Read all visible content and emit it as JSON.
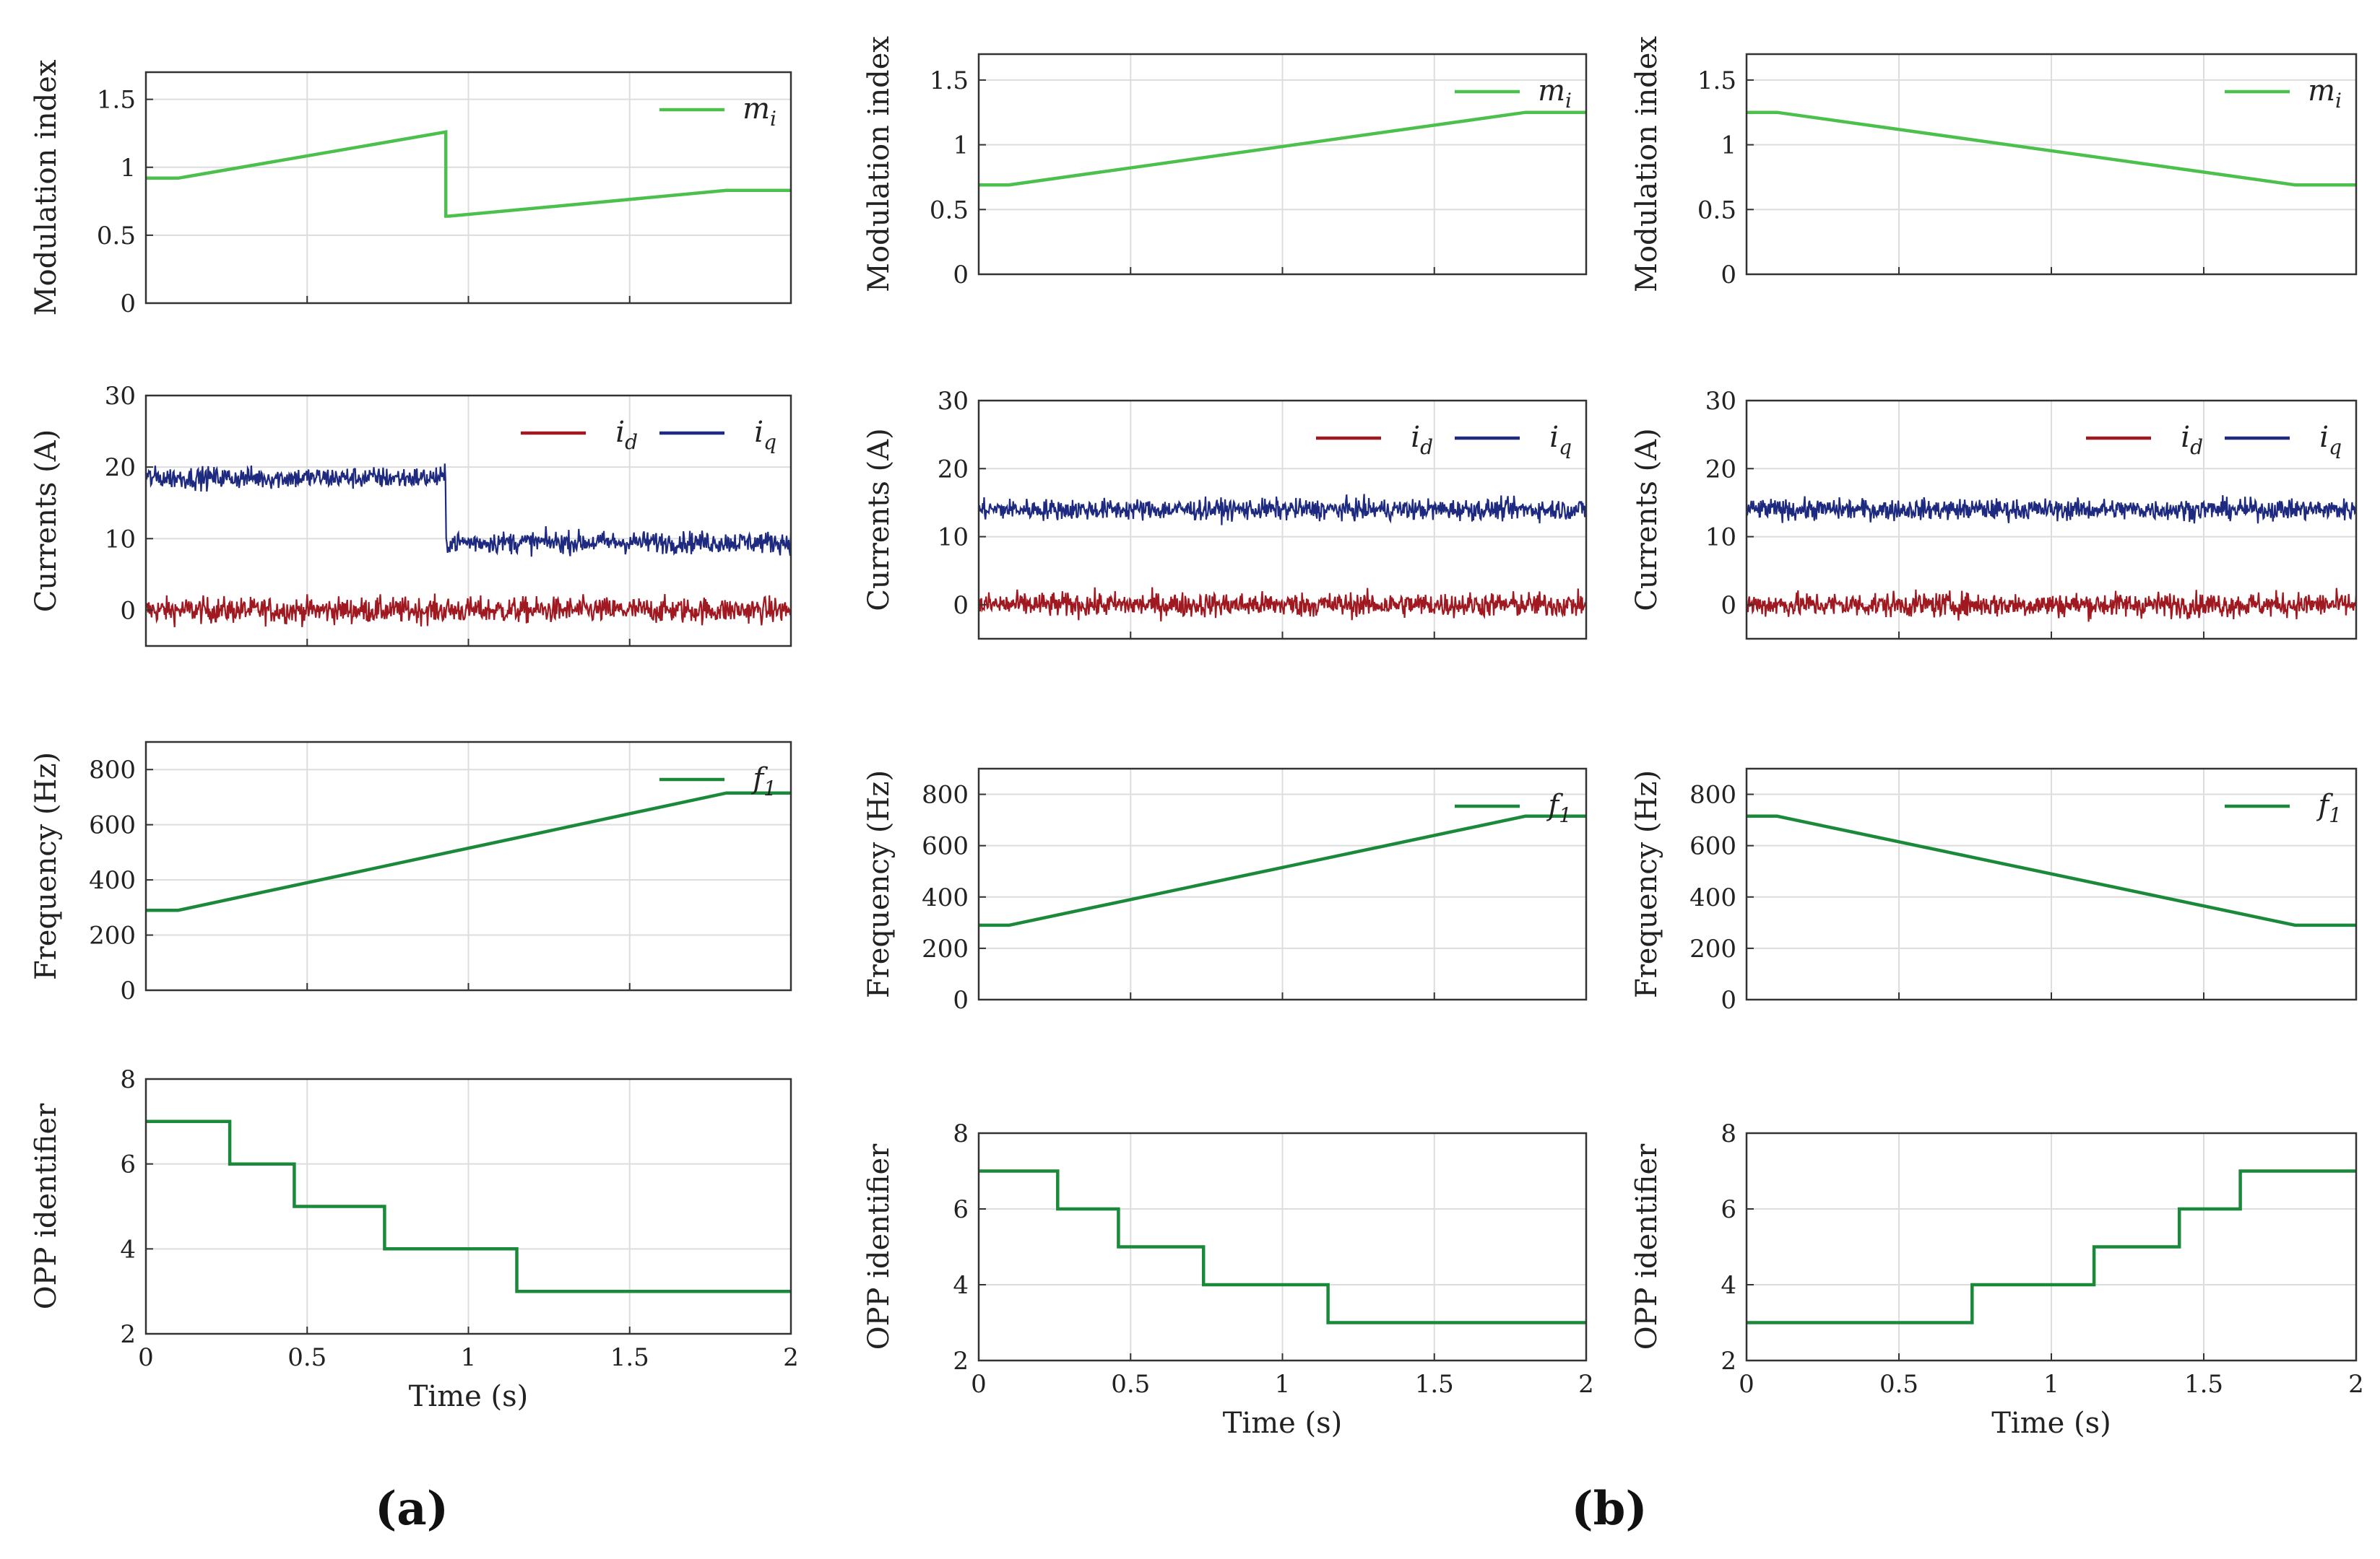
{
  "panel_labels": [
    "(a)",
    "(b)"
  ],
  "colors": {
    "mi": "#4cc04c",
    "id": "#a01820",
    "iq": "#1e2a80",
    "f1": "#1a8a3a",
    "opp": "#1a8a3a"
  },
  "chart_data": [
    {
      "id": "a-mi",
      "type": "line",
      "ylabel": "Modulation index",
      "xlabel": "",
      "xlim": [
        0,
        2
      ],
      "ylim": [
        0,
        1.7
      ],
      "yticks": [
        0,
        0.5,
        1,
        1.5
      ],
      "ytick_labels": [
        "0",
        "0.5",
        "1",
        "1.5"
      ],
      "xtick_labels": [],
      "series": [
        {
          "name": "m_i",
          "color": "mi",
          "x": [
            0,
            0.1,
            0.93,
            0.93,
            0.94,
            1.8,
            2
          ],
          "y": [
            0.92,
            0.92,
            1.26,
            0.64,
            0.64,
            0.83,
            0.83
          ]
        }
      ],
      "legend": [
        "m_i"
      ]
    },
    {
      "id": "a-cur",
      "type": "line",
      "ylabel": "Currents (A)",
      "xlabel": "",
      "xlim": [
        0,
        2
      ],
      "ylim": [
        -5,
        30
      ],
      "yticks": [
        0,
        10,
        20,
        30
      ],
      "ytick_labels": [
        "0",
        "10",
        "20",
        "30"
      ],
      "xtick_labels": [],
      "series": [
        {
          "name": "i_d",
          "color": "id",
          "noise": true,
          "x": [
            0,
            2
          ],
          "y": [
            0,
            0
          ]
        },
        {
          "name": "i_q",
          "color": "iq",
          "noise": true,
          "x": [
            0,
            0.93,
            0.93,
            2
          ],
          "y": [
            18.5,
            18.5,
            9.5,
            9.5
          ]
        }
      ],
      "legend": [
        "i_d",
        "i_q"
      ]
    },
    {
      "id": "a-freq",
      "type": "line",
      "ylabel": "Frequency (Hz)",
      "xlabel": "",
      "xlim": [
        0,
        2
      ],
      "ylim": [
        0,
        900
      ],
      "yticks": [
        0,
        200,
        400,
        600,
        800
      ],
      "ytick_labels": [
        "0",
        "200",
        "400",
        "600",
        "800"
      ],
      "xtick_labels": [],
      "series": [
        {
          "name": "f_1",
          "color": "f1",
          "x": [
            0,
            0.1,
            1.8,
            2
          ],
          "y": [
            290,
            290,
            715,
            715
          ]
        }
      ],
      "legend": [
        "f_1"
      ]
    },
    {
      "id": "a-opp",
      "type": "line",
      "ylabel": "OPP identifier",
      "xlabel": "Time (s)",
      "xlim": [
        0,
        2
      ],
      "ylim": [
        2,
        8
      ],
      "yticks": [
        2,
        4,
        6,
        8
      ],
      "ytick_labels": [
        "2",
        "4",
        "6",
        "8"
      ],
      "xtick_labels": [
        "0",
        "0.5",
        "1",
        "1.5",
        "2"
      ],
      "series": [
        {
          "name": "OPP",
          "color": "opp",
          "x": [
            0,
            0.26,
            0.26,
            0.46,
            0.46,
            0.74,
            0.74,
            1.15,
            1.15,
            2
          ],
          "y": [
            7,
            7,
            6,
            6,
            5,
            5,
            4,
            4,
            3,
            3
          ]
        }
      ],
      "legend": []
    },
    {
      "id": "b1-mi",
      "type": "line",
      "ylabel": "Modulation index",
      "xlabel": "",
      "xlim": [
        0,
        2
      ],
      "ylim": [
        0,
        1.7
      ],
      "yticks": [
        0,
        0.5,
        1,
        1.5
      ],
      "ytick_labels": [
        "0",
        "0.5",
        "1",
        "1.5"
      ],
      "xtick_labels": [],
      "series": [
        {
          "name": "m_i",
          "color": "mi",
          "x": [
            0,
            0.1,
            1.8,
            2
          ],
          "y": [
            0.69,
            0.69,
            1.25,
            1.25
          ]
        }
      ],
      "legend": [
        "m_i"
      ]
    },
    {
      "id": "b1-cur",
      "type": "line",
      "ylabel": "Currents (A)",
      "xlabel": "",
      "xlim": [
        0,
        2
      ],
      "ylim": [
        -5,
        30
      ],
      "yticks": [
        0,
        10,
        20,
        30
      ],
      "ytick_labels": [
        "0",
        "10",
        "20",
        "30"
      ],
      "xtick_labels": [],
      "series": [
        {
          "name": "i_d",
          "color": "id",
          "noise": true,
          "x": [
            0,
            2
          ],
          "y": [
            0,
            0
          ]
        },
        {
          "name": "i_q",
          "color": "iq",
          "noise": true,
          "x": [
            0,
            2
          ],
          "y": [
            14,
            14
          ]
        }
      ],
      "legend": [
        "i_d",
        "i_q"
      ]
    },
    {
      "id": "b1-freq",
      "type": "line",
      "ylabel": "Frequency (Hz)",
      "xlabel": "",
      "xlim": [
        0,
        2
      ],
      "ylim": [
        0,
        900
      ],
      "yticks": [
        0,
        200,
        400,
        600,
        800
      ],
      "ytick_labels": [
        "0",
        "200",
        "400",
        "600",
        "800"
      ],
      "xtick_labels": [],
      "series": [
        {
          "name": "f_1",
          "color": "f1",
          "x": [
            0,
            0.1,
            1.8,
            2
          ],
          "y": [
            290,
            290,
            715,
            715
          ]
        }
      ],
      "legend": [
        "f_1"
      ]
    },
    {
      "id": "b1-opp",
      "type": "line",
      "ylabel": "OPP identifier",
      "xlabel": "Time (s)",
      "xlim": [
        0,
        2
      ],
      "ylim": [
        2,
        8
      ],
      "yticks": [
        2,
        4,
        6,
        8
      ],
      "ytick_labels": [
        "2",
        "4",
        "6",
        "8"
      ],
      "xtick_labels": [
        "0",
        "0.5",
        "1",
        "1.5",
        "2"
      ],
      "series": [
        {
          "name": "OPP",
          "color": "opp",
          "x": [
            0,
            0.26,
            0.26,
            0.46,
            0.46,
            0.74,
            0.74,
            1.15,
            1.15,
            2
          ],
          "y": [
            7,
            7,
            6,
            6,
            5,
            5,
            4,
            4,
            3,
            3
          ]
        }
      ],
      "legend": []
    },
    {
      "id": "b2-mi",
      "type": "line",
      "ylabel": "Modulation index",
      "xlabel": "",
      "xlim": [
        0,
        2
      ],
      "ylim": [
        0,
        1.7
      ],
      "yticks": [
        0,
        0.5,
        1,
        1.5
      ],
      "ytick_labels": [
        "0",
        "0.5",
        "1",
        "1.5"
      ],
      "xtick_labels": [],
      "series": [
        {
          "name": "m_i",
          "color": "mi",
          "x": [
            0,
            0.1,
            1.8,
            2
          ],
          "y": [
            1.25,
            1.25,
            0.69,
            0.69
          ]
        }
      ],
      "legend": [
        "m_i"
      ]
    },
    {
      "id": "b2-cur",
      "type": "line",
      "ylabel": "Currents (A)",
      "xlabel": "",
      "xlim": [
        0,
        2
      ],
      "ylim": [
        -5,
        30
      ],
      "yticks": [
        0,
        10,
        20,
        30
      ],
      "ytick_labels": [
        "0",
        "10",
        "20",
        "30"
      ],
      "xtick_labels": [],
      "series": [
        {
          "name": "i_d",
          "color": "id",
          "noise": true,
          "x": [
            0,
            2
          ],
          "y": [
            0,
            0
          ]
        },
        {
          "name": "i_q",
          "color": "iq",
          "noise": true,
          "x": [
            0,
            2
          ],
          "y": [
            14,
            14
          ]
        }
      ],
      "legend": [
        "i_d",
        "i_q"
      ]
    },
    {
      "id": "b2-freq",
      "type": "line",
      "ylabel": "Frequency (Hz)",
      "xlabel": "",
      "xlim": [
        0,
        2
      ],
      "ylim": [
        0,
        900
      ],
      "yticks": [
        0,
        200,
        400,
        600,
        800
      ],
      "ytick_labels": [
        "0",
        "200",
        "400",
        "600",
        "800"
      ],
      "xtick_labels": [],
      "series": [
        {
          "name": "f_1",
          "color": "f1",
          "x": [
            0,
            0.1,
            1.8,
            2
          ],
          "y": [
            715,
            715,
            290,
            290
          ]
        }
      ],
      "legend": [
        "f_1"
      ]
    },
    {
      "id": "b2-opp",
      "type": "line",
      "ylabel": "OPP identifier",
      "xlabel": "Time (s)",
      "xlim": [
        0,
        2
      ],
      "ylim": [
        2,
        8
      ],
      "yticks": [
        2,
        4,
        6,
        8
      ],
      "ytick_labels": [
        "2",
        "4",
        "6",
        "8"
      ],
      "xtick_labels": [
        "0",
        "0.5",
        "1",
        "1.5",
        "2"
      ],
      "series": [
        {
          "name": "OPP",
          "color": "opp",
          "x": [
            0,
            0.74,
            0.74,
            1.14,
            1.14,
            1.42,
            1.42,
            1.62,
            1.62,
            2
          ],
          "y": [
            3,
            3,
            4,
            4,
            5,
            5,
            6,
            6,
            7,
            7
          ]
        }
      ],
      "legend": []
    }
  ]
}
